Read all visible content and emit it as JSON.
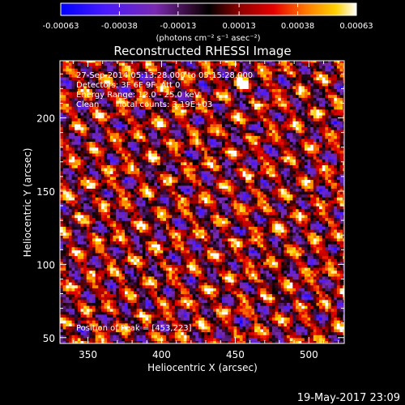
{
  "chart_data": {
    "type": "heatmap",
    "title": "Reconstructed RHESSI Image",
    "xlabel": "Heliocentric X (arcsec)",
    "ylabel": "Heliocentric Y (arcsec)",
    "xlim": [
      331,
      524
    ],
    "ylim": [
      46,
      239
    ],
    "x_ticks": [
      350,
      400,
      450,
      500
    ],
    "y_ticks": [
      50,
      100,
      150,
      200
    ],
    "colorbar": {
      "min": -0.00063,
      "max": 0.00063,
      "tick_values": [
        -0.00063,
        -0.00038,
        -0.00013,
        0.00013,
        0.00038,
        0.00063
      ],
      "tick_labels": [
        "-0.00063",
        "-0.00038",
        "-0.00013",
        "0.00013",
        "0.00038",
        "0.00063"
      ],
      "unit_label": "(photons cm⁻² s⁻¹ asec⁻²)",
      "colors": [
        "#0000ff",
        "#5a19ff",
        "#7a2ab0",
        "#3b0a3a",
        "#000000",
        "#8a0000",
        "#e60000",
        "#ff7a00",
        "#ffd000",
        "#ffffff"
      ]
    },
    "annotations": {
      "time_range": "27-Sep-2014 05:13:28.000 to 05:15:28.000",
      "detectors": "Detectors: 3F 6F 9F, Att 0",
      "energy_range": "Energy Range: 12.0 - 25.0 keV",
      "clean": "Clean",
      "total_counts": "Total counts: 3.19E+03",
      "peak": "Position of Peak = [453,223]"
    },
    "peak_position": [
      453,
      223
    ],
    "footer_date": "19-May-2017 23:09"
  }
}
